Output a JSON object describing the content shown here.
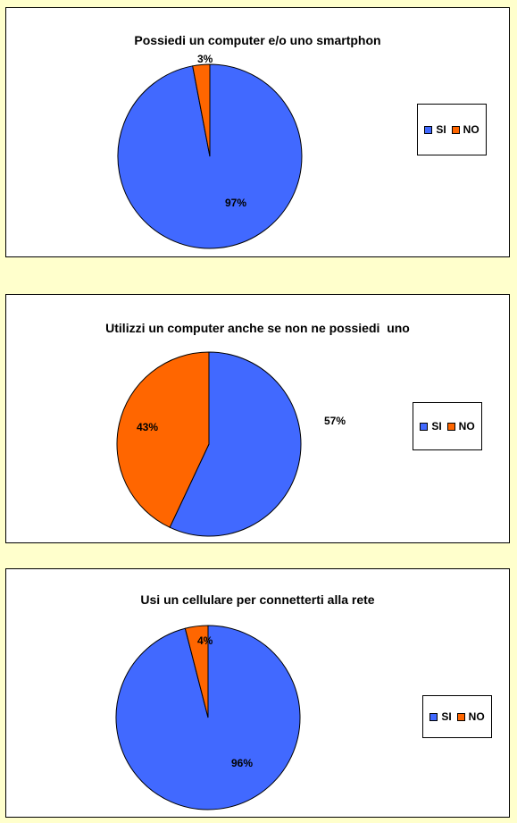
{
  "colors": {
    "si": "#4169ff",
    "no": "#ff6600"
  },
  "chart_data": [
    {
      "type": "pie",
      "title": "Possiedi un computer e/o uno smartphon",
      "categories": [
        "SI",
        "NO"
      ],
      "values": [
        97,
        3
      ],
      "labels": [
        "97%",
        "3%"
      ],
      "legend": {
        "position": "right",
        "entries": [
          "SI",
          "NO"
        ]
      }
    },
    {
      "type": "pie",
      "title": "Utilizzi un computer anche se non ne possiedi  uno",
      "categories": [
        "SI",
        "NO"
      ],
      "values": [
        57,
        43
      ],
      "labels": [
        "57%",
        "43%"
      ],
      "legend": {
        "position": "right",
        "entries": [
          "SI",
          "NO"
        ]
      }
    },
    {
      "type": "pie",
      "title": "Usi un cellulare per connetterti alla rete",
      "categories": [
        "SI",
        "NO"
      ],
      "values": [
        96,
        4
      ],
      "labels": [
        "96%",
        "4%"
      ],
      "legend": {
        "position": "right",
        "entries": [
          "SI",
          "NO"
        ]
      }
    }
  ]
}
